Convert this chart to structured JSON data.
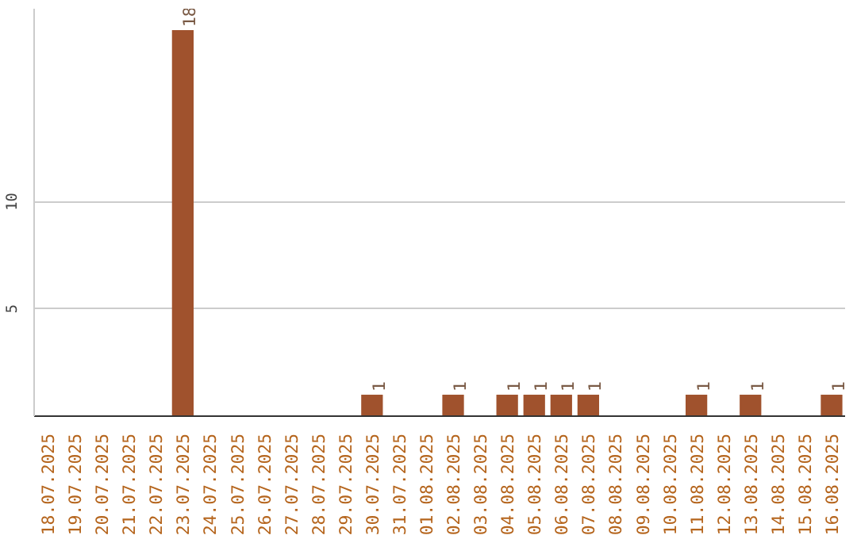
{
  "chart_data": {
    "type": "bar",
    "categories": [
      "18.07.2025",
      "19.07.2025",
      "20.07.2025",
      "21.07.2025",
      "22.07.2025",
      "23.07.2025",
      "24.07.2025",
      "25.07.2025",
      "26.07.2025",
      "27.07.2025",
      "28.07.2025",
      "29.07.2025",
      "30.07.2025",
      "31.07.2025",
      "01.08.2025",
      "02.08.2025",
      "03.08.2025",
      "04.08.2025",
      "05.08.2025",
      "06.08.2025",
      "07.08.2025",
      "08.08.2025",
      "09.08.2025",
      "10.08.2025",
      "11.08.2025",
      "12.08.2025",
      "13.08.2025",
      "14.08.2025",
      "15.08.2025",
      "16.08.2025"
    ],
    "values": [
      0,
      0,
      0,
      0,
      0,
      18,
      0,
      0,
      0,
      0,
      0,
      0,
      1,
      0,
      0,
      1,
      0,
      1,
      1,
      1,
      1,
      0,
      0,
      0,
      1,
      0,
      1,
      0,
      0,
      1
    ],
    "value_labels": [
      null,
      null,
      null,
      null,
      null,
      "18",
      null,
      null,
      null,
      null,
      null,
      null,
      "1",
      null,
      null,
      "1",
      null,
      "1",
      "1",
      "1",
      "1",
      null,
      null,
      null,
      "1",
      null,
      "1",
      null,
      null,
      "1"
    ],
    "color": "#a0522d",
    "ylim": [
      0,
      19
    ],
    "yticks": [
      5,
      10
    ],
    "grid": "y"
  }
}
